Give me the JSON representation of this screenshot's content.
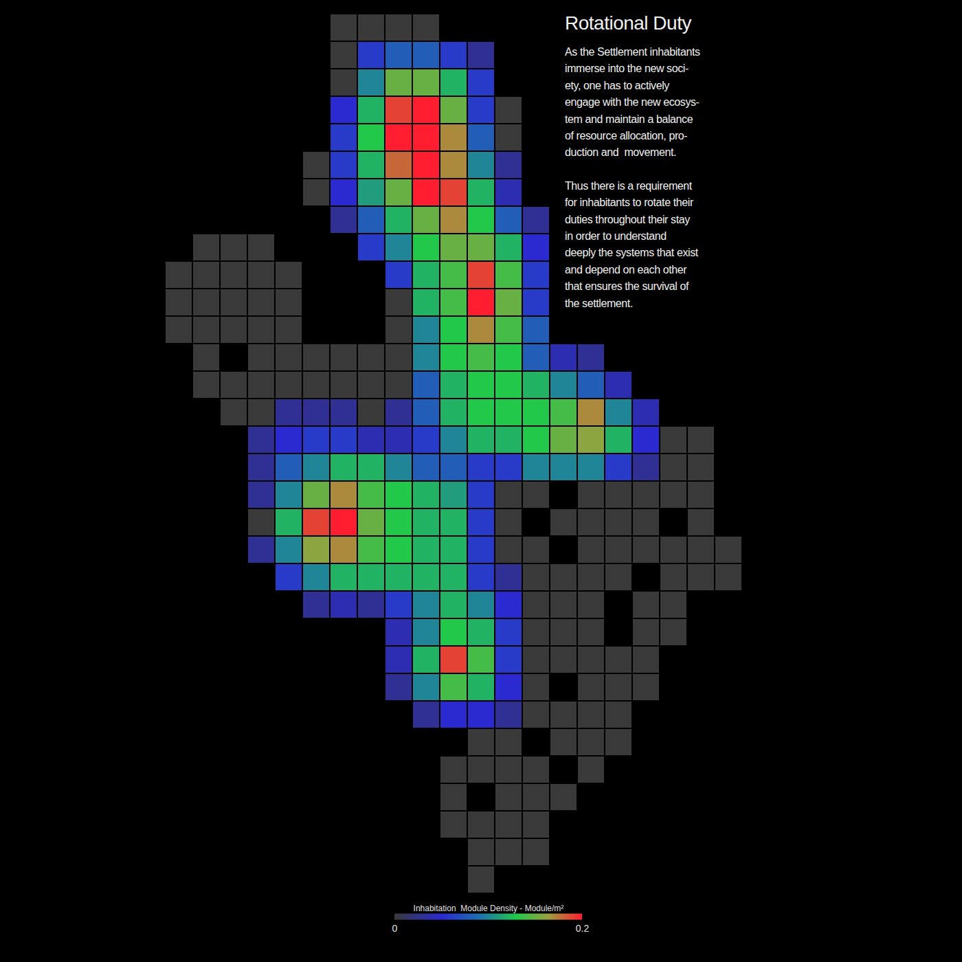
{
  "chart_data": {
    "type": "heatmap",
    "title": "Rotational Duty",
    "text": [
      [
        "As the Settlement inhabitants",
        "immerse into the new soci-",
        "ety, one has to actively",
        "engage with the new ecosys-",
        "tem and maintain a balance",
        "of resource allocation, pro-",
        "duction and  movement."
      ],
      [
        "Thus there is a requirement",
        "for inhabitants to rotate their",
        "duties throughout their stay",
        "in order to understand",
        "deeply the systems that exist",
        "and depend on each other",
        "that ensures the survival of",
        "the settlement."
      ]
    ],
    "tick_labels": false,
    "colorbar": {
      "title": "Inhabitation  Module Density - Module/m²",
      "range": [
        0,
        0.2
      ],
      "ticks": [
        0,
        0.2
      ]
    },
    "cells": [
      [
        null,
        null,
        null,
        null,
        null,
        null,
        0,
        0,
        0,
        0,
        null,
        null,
        null,
        null,
        null,
        null,
        null,
        null,
        null,
        null,
        null,
        null
      ],
      [
        null,
        null,
        null,
        null,
        null,
        null,
        0,
        0.06,
        0.08,
        0.08,
        0.06,
        0.03,
        null,
        null,
        null,
        null,
        null,
        null,
        null,
        null,
        null,
        null
      ],
      [
        null,
        null,
        null,
        null,
        null,
        null,
        0,
        0.1,
        0.15,
        0.15,
        0.12,
        0.06,
        null,
        null,
        null,
        null,
        null,
        null,
        null,
        null,
        null,
        null
      ],
      [
        null,
        null,
        null,
        null,
        null,
        null,
        0.05,
        0.12,
        0.19,
        0.2,
        0.15,
        0.06,
        0,
        null,
        null,
        null,
        null,
        null,
        null,
        null,
        null,
        null
      ],
      [
        null,
        null,
        null,
        null,
        null,
        null,
        0.06,
        0.13,
        0.2,
        0.2,
        0.17,
        0.08,
        0,
        null,
        null,
        null,
        null,
        null,
        null,
        null,
        null,
        null
      ],
      [
        null,
        null,
        null,
        null,
        null,
        0,
        0.06,
        0.12,
        0.18,
        0.2,
        0.17,
        0.1,
        0.03,
        null,
        null,
        null,
        null,
        null,
        null,
        null,
        null,
        null
      ],
      [
        null,
        null,
        null,
        null,
        null,
        0,
        0.05,
        0.11,
        0.15,
        0.2,
        0.19,
        0.12,
        0.04,
        null,
        null,
        null,
        null,
        null,
        null,
        null,
        null,
        null
      ],
      [
        null,
        null,
        null,
        null,
        null,
        null,
        0.03,
        0.08,
        0.12,
        0.15,
        0.17,
        0.13,
        0.08,
        0.03,
        null,
        null,
        null,
        null,
        null,
        null,
        null,
        null
      ],
      [
        null,
        0,
        0,
        0,
        null,
        null,
        null,
        0.06,
        0.1,
        0.13,
        0.15,
        0.15,
        0.12,
        0.05,
        null,
        null,
        null,
        null,
        null,
        null,
        null,
        null
      ],
      [
        0,
        0,
        0,
        0,
        0,
        null,
        null,
        null,
        0.06,
        0.12,
        0.14,
        0.19,
        0.14,
        0.06,
        null,
        null,
        null,
        null,
        null,
        null,
        null,
        null
      ],
      [
        0,
        0,
        0,
        0,
        0,
        null,
        null,
        null,
        0,
        0.12,
        0.14,
        0.2,
        0.15,
        0.06,
        null,
        null,
        null,
        null,
        null,
        null,
        null,
        null
      ],
      [
        0,
        0,
        0,
        0,
        0,
        null,
        null,
        null,
        0,
        0.1,
        0.13,
        0.17,
        0.14,
        0.08,
        null,
        null,
        null,
        null,
        null,
        null,
        null,
        null
      ],
      [
        null,
        0,
        null,
        0,
        0,
        0,
        0,
        0,
        0,
        0.1,
        0.13,
        0.14,
        0.13,
        0.08,
        0.04,
        0.03,
        null,
        null,
        null,
        null,
        null,
        null
      ],
      [
        null,
        0,
        0,
        0,
        0,
        0,
        0,
        0,
        0,
        0.08,
        0.12,
        0.13,
        0.13,
        0.12,
        0.1,
        0.08,
        0.04,
        null,
        null,
        null,
        null,
        null
      ],
      [
        null,
        null,
        0,
        0,
        0.03,
        0.03,
        0.03,
        0,
        0.03,
        0.08,
        0.12,
        0.13,
        0.13,
        0.13,
        0.14,
        0.17,
        0.1,
        0.04,
        null,
        null,
        null,
        null
      ],
      [
        null,
        null,
        null,
        0.03,
        0.05,
        0.06,
        0.06,
        0.04,
        0.04,
        0.06,
        0.1,
        0.12,
        0.12,
        0.13,
        0.15,
        0.16,
        0.12,
        0.05,
        0,
        0,
        null,
        null
      ],
      [
        null,
        null,
        null,
        0.03,
        0.08,
        0.1,
        0.12,
        0.12,
        0.1,
        0.08,
        0.08,
        0.06,
        0.06,
        0.1,
        0.1,
        0.1,
        0.06,
        0.03,
        0,
        0,
        null,
        null
      ],
      [
        null,
        null,
        null,
        0.03,
        0.1,
        0.15,
        0.17,
        0.14,
        0.13,
        0.12,
        0.11,
        0.06,
        0,
        0,
        null,
        0,
        0,
        0,
        0,
        0,
        null,
        null
      ],
      [
        null,
        null,
        null,
        0,
        0.12,
        0.19,
        0.2,
        0.15,
        0.13,
        0.12,
        0.12,
        0.06,
        0,
        null,
        0,
        0,
        0,
        0,
        null,
        0,
        null,
        null
      ],
      [
        null,
        null,
        null,
        0.03,
        0.1,
        0.16,
        0.17,
        0.14,
        0.13,
        0.12,
        0.12,
        0.06,
        0,
        0,
        null,
        0,
        0,
        0,
        0,
        0,
        0,
        null
      ],
      [
        null,
        null,
        null,
        null,
        0.06,
        0.1,
        0.12,
        0.12,
        0.12,
        0.12,
        0.12,
        0.06,
        0.03,
        0,
        0,
        0,
        0,
        null,
        0,
        0,
        0,
        null
      ],
      [
        null,
        null,
        null,
        null,
        null,
        0.03,
        0.04,
        0.03,
        0.06,
        0.1,
        0.12,
        0.1,
        0.05,
        0,
        0,
        0,
        null,
        0,
        0,
        null,
        null,
        null
      ],
      [
        null,
        null,
        null,
        null,
        null,
        null,
        null,
        null,
        0.04,
        0.1,
        0.13,
        0.12,
        0.06,
        0,
        0,
        0,
        null,
        0,
        0,
        null,
        null,
        null
      ],
      [
        null,
        null,
        null,
        null,
        null,
        null,
        null,
        null,
        0.04,
        0.12,
        0.19,
        0.14,
        0.06,
        0,
        0,
        0,
        0,
        0,
        null,
        null,
        null,
        null
      ],
      [
        null,
        null,
        null,
        null,
        null,
        null,
        null,
        null,
        0.03,
        0.1,
        0.14,
        0.12,
        0.05,
        0,
        null,
        0,
        0,
        0,
        null,
        null,
        null,
        null
      ],
      [
        null,
        null,
        null,
        null,
        null,
        null,
        null,
        null,
        null,
        0.03,
        0.05,
        0.05,
        0.03,
        0,
        0,
        0,
        0,
        null,
        null,
        null,
        null,
        null
      ],
      [
        null,
        null,
        null,
        null,
        null,
        null,
        null,
        null,
        null,
        null,
        null,
        0,
        0,
        null,
        0,
        0,
        0,
        null,
        null,
        null,
        null,
        null
      ],
      [
        null,
        null,
        null,
        null,
        null,
        null,
        null,
        null,
        null,
        null,
        0,
        0,
        0,
        0,
        null,
        0,
        null,
        null,
        null,
        null,
        null,
        null
      ],
      [
        null,
        null,
        null,
        null,
        null,
        null,
        null,
        null,
        null,
        null,
        0,
        null,
        0,
        0,
        0,
        null,
        null,
        null,
        null,
        null,
        null,
        null
      ],
      [
        null,
        null,
        null,
        null,
        null,
        null,
        null,
        null,
        null,
        null,
        0,
        0,
        0,
        0,
        null,
        null,
        null,
        null,
        null,
        null,
        null,
        null
      ],
      [
        null,
        null,
        null,
        null,
        null,
        null,
        null,
        null,
        null,
        null,
        null,
        0,
        0,
        0,
        null,
        null,
        null,
        null,
        null,
        null,
        null,
        null
      ],
      [
        null,
        null,
        null,
        null,
        null,
        null,
        null,
        null,
        null,
        null,
        null,
        0,
        null,
        null,
        null,
        null,
        null,
        null,
        null,
        null,
        null,
        null
      ]
    ]
  }
}
